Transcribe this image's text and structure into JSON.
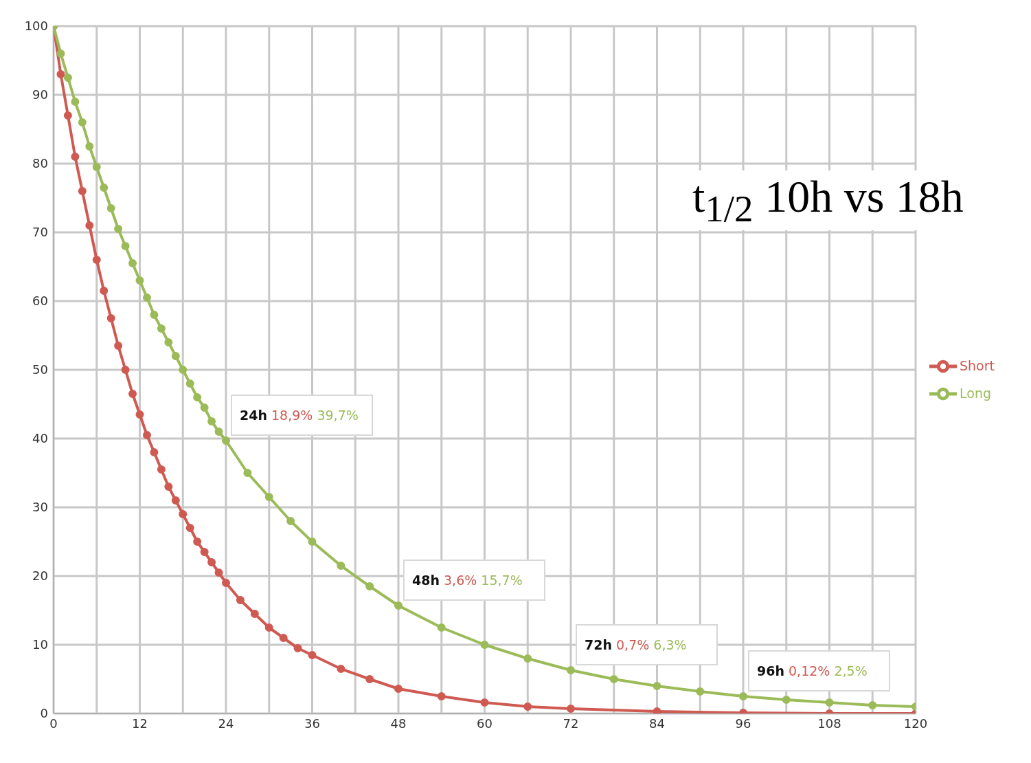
{
  "chart_data": {
    "type": "line",
    "title": "t$_{1/2}$ 10h vs 18h",
    "xlim": [
      0,
      120
    ],
    "xticks": [
      0,
      {
        "value": 6,
        "label": null
      },
      12,
      {
        "value": 18,
        "label": null
      },
      24,
      {
        "value": 30,
        "label": null
      },
      36,
      {
        "value": 42,
        "label": null
      },
      48,
      {
        "value": 54,
        "label": null
      },
      60,
      {
        "value": 66,
        "label": null
      },
      72,
      {
        "value": 78,
        "label": null
      },
      84,
      {
        "value": 90,
        "label": null
      },
      96,
      {
        "value": 102,
        "label": null
      },
      108,
      {
        "value": 114,
        "label": null
      },
      120
    ],
    "ylim": [
      0,
      100
    ],
    "yticks": [
      0,
      10,
      20,
      30,
      40,
      50,
      60,
      70,
      80,
      90,
      100
    ],
    "grid": true,
    "legend": "right",
    "marker": "circle",
    "line_style": "solid",
    "series": [
      {
        "name": "Short",
        "color": "#cf5a52",
        "x": [
          0,
          1,
          2,
          3,
          4,
          5,
          6,
          7,
          8,
          9,
          10,
          11,
          12,
          13,
          14,
          15,
          16,
          17,
          18,
          19,
          20,
          21,
          22,
          23,
          24,
          26,
          28,
          30,
          32,
          34,
          36,
          40,
          44,
          48,
          54,
          60,
          66,
          72,
          84,
          96,
          108,
          120
        ],
        "values": [
          100,
          93,
          87,
          81,
          76,
          71,
          66,
          61.5,
          57.5,
          53.5,
          50,
          46.5,
          43.5,
          40.5,
          38,
          35.5,
          33,
          31,
          29,
          27,
          25,
          23.5,
          22,
          20.5,
          19,
          16.5,
          14.5,
          12.5,
          11,
          9.5,
          8.5,
          6.5,
          5,
          3.6,
          2.5,
          1.6,
          1,
          0.7,
          0.3,
          0.1,
          0,
          0
        ]
      },
      {
        "name": "Long",
        "color": "#9bbb59",
        "x": [
          0,
          1,
          2,
          3,
          4,
          5,
          6,
          7,
          8,
          9,
          10,
          11,
          12,
          13,
          14,
          15,
          16,
          17,
          18,
          19,
          20,
          21,
          22,
          23,
          24,
          27,
          30,
          33,
          36,
          40,
          44,
          48,
          54,
          60,
          66,
          72,
          78,
          84,
          90,
          96,
          102,
          108,
          114,
          120
        ],
        "values": [
          100,
          96,
          92.5,
          89,
          86,
          82.5,
          79.5,
          76.5,
          73.5,
          70.5,
          68,
          65.5,
          63,
          60.5,
          58,
          56,
          54,
          52,
          50,
          48,
          46,
          44.5,
          42.5,
          41,
          39.7,
          35,
          31.5,
          28,
          25,
          21.5,
          18.5,
          15.7,
          12.5,
          10,
          8,
          6.3,
          5,
          4,
          3.2,
          2.5,
          2,
          1.6,
          1.2,
          1
        ]
      }
    ],
    "annotations": [
      {
        "text": "24h 18,9% 39,7%",
        "x": 24,
        "y": 39.7
      },
      {
        "text": "48h 3,6% 15,7%",
        "x": 48,
        "y": 15.7
      },
      {
        "text": "72h 0,7% 6,3%",
        "x": 72,
        "y": 6.3
      },
      {
        "text": "96h 0,12% 2,5%",
        "x": 96,
        "y": 2.5
      }
    ]
  }
}
